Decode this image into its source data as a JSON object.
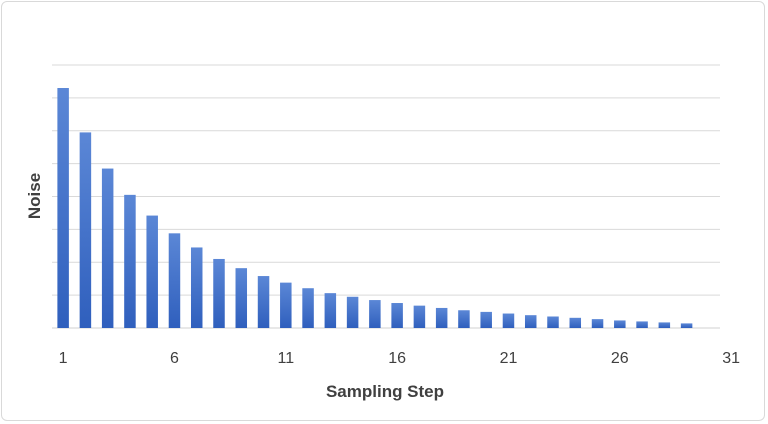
{
  "chart_data": {
    "type": "bar",
    "title": "",
    "xlabel": "Sampling Step",
    "ylabel": "Noise",
    "x": [
      1,
      2,
      3,
      4,
      5,
      6,
      7,
      8,
      9,
      10,
      11,
      12,
      13,
      14,
      15,
      16,
      17,
      18,
      19,
      20,
      21,
      22,
      23,
      24,
      25,
      26,
      27,
      28,
      29,
      30
    ],
    "values": [
      7.3,
      5.95,
      4.85,
      4.05,
      3.42,
      2.88,
      2.45,
      2.1,
      1.82,
      1.58,
      1.38,
      1.21,
      1.06,
      0.95,
      0.85,
      0.76,
      0.68,
      0.61,
      0.54,
      0.49,
      0.44,
      0.39,
      0.35,
      0.31,
      0.27,
      0.23,
      0.2,
      0.17,
      0.14,
      0
    ],
    "xticks": [
      "1",
      "6",
      "11",
      "16",
      "21",
      "26",
      "31"
    ],
    "ylim": [
      0,
      8
    ],
    "grid": "horizontal",
    "bar_color": "#4472c4",
    "bar_color_dark": "#2e5cb8",
    "grid_color": "#d9d9d9"
  }
}
